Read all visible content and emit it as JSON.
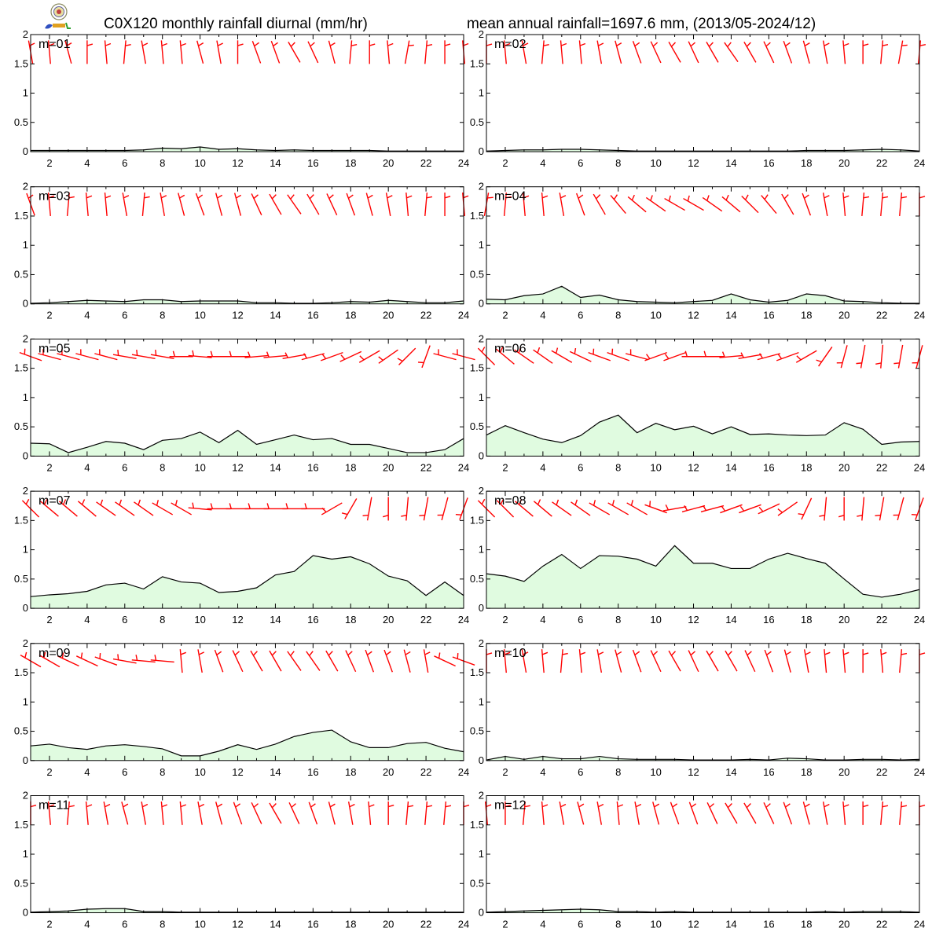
{
  "title_left": "C0X120 monthly rainfall diurnal (mm/hr)",
  "title_right": "mean annual rainfall=1697.6 mm, (2013/05-2024/12)",
  "colors": {
    "fill": "#e0fbe0",
    "line": "#000000",
    "wind": "#ff0000",
    "axis": "#000000"
  },
  "chart_data": {
    "type": "area",
    "xlim": [
      1,
      24
    ],
    "ylim": [
      0,
      2
    ],
    "xticks": [
      "2",
      "4",
      "6",
      "8",
      "10",
      "12",
      "14",
      "16",
      "18",
      "20",
      "22",
      "24"
    ],
    "yticks": [
      "0",
      "0.5",
      "1",
      "1.5",
      "2"
    ],
    "x": [
      1,
      2,
      3,
      4,
      5,
      6,
      7,
      8,
      9,
      10,
      11,
      12,
      13,
      14,
      15,
      16,
      17,
      18,
      19,
      20,
      21,
      22,
      23,
      24
    ],
    "panels": [
      {
        "label": "m=01",
        "values": [
          0.02,
          0.02,
          0.02,
          0.02,
          0.02,
          0.02,
          0.03,
          0.06,
          0.05,
          0.08,
          0.04,
          0.05,
          0.03,
          0.02,
          0.03,
          0.02,
          0.02,
          0.02,
          0.02,
          0.01,
          0.01,
          0.01,
          0.01,
          0.01
        ],
        "wind_dir": [
          350,
          355,
          345,
          360,
          355,
          5,
          350,
          355,
          355,
          345,
          350,
          0,
          340,
          340,
          330,
          335,
          345,
          5,
          0,
          355,
          10,
          5,
          0,
          355
        ]
      },
      {
        "label": "m=02",
        "values": [
          0.01,
          0.02,
          0.03,
          0.03,
          0.04,
          0.04,
          0.03,
          0.02,
          0.01,
          0.01,
          0.01,
          0.01,
          0.01,
          0.01,
          0.01,
          0.01,
          0.01,
          0.02,
          0.02,
          0.02,
          0.03,
          0.04,
          0.03,
          0.01
        ],
        "wind_dir": [
          0,
          355,
          350,
          5,
          355,
          355,
          350,
          345,
          340,
          335,
          330,
          335,
          330,
          325,
          330,
          335,
          340,
          345,
          350,
          355,
          0,
          5,
          10,
          5
        ]
      },
      {
        "label": "m=03",
        "values": [
          0.01,
          0.02,
          0.04,
          0.06,
          0.05,
          0.04,
          0.07,
          0.07,
          0.04,
          0.05,
          0.05,
          0.05,
          0.02,
          0.02,
          0.01,
          0.01,
          0.02,
          0.04,
          0.03,
          0.06,
          0.04,
          0.02,
          0.02,
          0.05
        ],
        "wind_dir": [
          340,
          355,
          5,
          355,
          355,
          350,
          5,
          350,
          345,
          340,
          345,
          345,
          335,
          330,
          325,
          330,
          335,
          340,
          345,
          350,
          355,
          5,
          0,
          355
        ]
      },
      {
        "label": "m=04",
        "values": [
          0.08,
          0.07,
          0.14,
          0.17,
          0.3,
          0.11,
          0.15,
          0.07,
          0.04,
          0.03,
          0.02,
          0.04,
          0.06,
          0.17,
          0.07,
          0.03,
          0.06,
          0.17,
          0.14,
          0.05,
          0.04,
          0.02,
          0.01,
          0.01
        ],
        "wind_dir": [
          10,
          5,
          355,
          355,
          350,
          340,
          330,
          320,
          310,
          305,
          300,
          300,
          305,
          310,
          315,
          320,
          330,
          340,
          350,
          355,
          5,
          5,
          5,
          0
        ]
      },
      {
        "label": "m=05",
        "values": [
          0.22,
          0.21,
          0.06,
          0.15,
          0.25,
          0.22,
          0.11,
          0.27,
          0.3,
          0.41,
          0.23,
          0.44,
          0.2,
          0.28,
          0.36,
          0.28,
          0.3,
          0.2,
          0.2,
          0.13,
          0.06,
          0.06,
          0.11,
          0.3
        ],
        "wind_dir": [
          290,
          285,
          285,
          285,
          285,
          280,
          280,
          280,
          270,
          275,
          270,
          270,
          265,
          265,
          260,
          255,
          250,
          245,
          240,
          235,
          225,
          200,
          285,
          285
        ]
      },
      {
        "label": "m=06",
        "values": [
          0.36,
          0.52,
          0.4,
          0.29,
          0.23,
          0.35,
          0.58,
          0.7,
          0.4,
          0.56,
          0.45,
          0.51,
          0.38,
          0.5,
          0.37,
          0.38,
          0.36,
          0.35,
          0.36,
          0.57,
          0.46,
          0.2,
          0.24,
          0.25
        ],
        "wind_dir": [
          315,
          310,
          305,
          305,
          300,
          295,
          290,
          290,
          285,
          250,
          250,
          270,
          270,
          265,
          260,
          255,
          250,
          240,
          215,
          195,
          190,
          185,
          190,
          195
        ]
      },
      {
        "label": "m=07",
        "values": [
          0.2,
          0.23,
          0.25,
          0.29,
          0.4,
          0.43,
          0.33,
          0.54,
          0.45,
          0.43,
          0.27,
          0.29,
          0.35,
          0.57,
          0.63,
          0.9,
          0.84,
          0.88,
          0.76,
          0.55,
          0.47,
          0.22,
          0.45,
          0.22
        ],
        "wind_dir": [
          315,
          310,
          310,
          310,
          305,
          305,
          305,
          300,
          300,
          275,
          270,
          270,
          270,
          270,
          270,
          270,
          240,
          210,
          190,
          180,
          185,
          190,
          195,
          200
        ]
      },
      {
        "label": "m=08",
        "values": [
          0.59,
          0.55,
          0.46,
          0.72,
          0.92,
          0.68,
          0.9,
          0.89,
          0.84,
          0.72,
          1.07,
          0.77,
          0.77,
          0.68,
          0.68,
          0.84,
          0.94,
          0.85,
          0.77,
          0.5,
          0.24,
          0.19,
          0.24,
          0.32
        ],
        "wind_dir": [
          315,
          315,
          310,
          310,
          305,
          305,
          300,
          300,
          300,
          290,
          260,
          255,
          255,
          250,
          250,
          245,
          235,
          205,
          185,
          180,
          185,
          190,
          195,
          200
        ]
      },
      {
        "label": "m=09",
        "values": [
          0.25,
          0.28,
          0.22,
          0.19,
          0.25,
          0.27,
          0.24,
          0.2,
          0.08,
          0.08,
          0.16,
          0.27,
          0.19,
          0.28,
          0.41,
          0.48,
          0.52,
          0.32,
          0.22,
          0.22,
          0.29,
          0.31,
          0.21,
          0.15
        ],
        "wind_dir": [
          300,
          300,
          295,
          295,
          290,
          280,
          275,
          275,
          355,
          350,
          340,
          335,
          330,
          330,
          325,
          325,
          330,
          335,
          340,
          340,
          345,
          350,
          295,
          290
        ]
      },
      {
        "label": "m=10",
        "values": [
          0.01,
          0.07,
          0.02,
          0.07,
          0.03,
          0.03,
          0.07,
          0.03,
          0.02,
          0.02,
          0.02,
          0.01,
          0.01,
          0.01,
          0.02,
          0.01,
          0.04,
          0.03,
          0.01,
          0.01,
          0.02,
          0.02,
          0.01,
          0.02
        ],
        "wind_dir": [
          0,
          355,
          350,
          355,
          5,
          355,
          350,
          345,
          340,
          335,
          330,
          335,
          330,
          330,
          335,
          340,
          345,
          350,
          355,
          355,
          0,
          355,
          5,
          0
        ]
      },
      {
        "label": "m=11",
        "values": [
          0.01,
          0.02,
          0.03,
          0.06,
          0.07,
          0.07,
          0.02,
          0.02,
          0.01,
          0.01,
          0.01,
          0.01,
          0.01,
          0.01,
          0.01,
          0.01,
          0.01,
          0.01,
          0.01,
          0.01,
          0.01,
          0.01,
          0.01,
          0.01
        ],
        "wind_dir": [
          0,
          355,
          5,
          355,
          350,
          345,
          350,
          355,
          355,
          350,
          345,
          340,
          335,
          330,
          335,
          340,
          345,
          350,
          355,
          0,
          5,
          5,
          5,
          0
        ]
      },
      {
        "label": "m=12",
        "values": [
          0.01,
          0.02,
          0.03,
          0.04,
          0.05,
          0.06,
          0.05,
          0.02,
          0.02,
          0.01,
          0.02,
          0.01,
          0.01,
          0.01,
          0.01,
          0.01,
          0.01,
          0.01,
          0.02,
          0.01,
          0.02,
          0.02,
          0.02,
          0.01
        ],
        "wind_dir": [
          355,
          0,
          5,
          355,
          350,
          345,
          350,
          355,
          350,
          345,
          340,
          340,
          335,
          330,
          330,
          335,
          340,
          345,
          350,
          355,
          0,
          5,
          5,
          0
        ]
      }
    ]
  }
}
